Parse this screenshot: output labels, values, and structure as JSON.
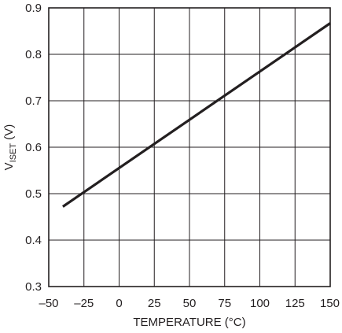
{
  "chart_data": {
    "type": "line",
    "title": "",
    "xlabel": "TEMPERATURE (°C)",
    "ylabel": {
      "base": "V",
      "subscript": "ISET",
      "unit": " (V)"
    },
    "xlim": [
      -50,
      150
    ],
    "ylim": [
      0.3,
      0.9
    ],
    "xticks": [
      "–50",
      "–25",
      "0",
      "25",
      "50",
      "75",
      "100",
      "125",
      "150"
    ],
    "yticks": [
      "0.3",
      "0.4",
      "0.5",
      "0.6",
      "0.7",
      "0.8",
      "0.9"
    ],
    "grid": true,
    "series": [
      {
        "x": [
          -40,
          150
        ],
        "y": [
          0.472,
          0.867
        ]
      }
    ]
  },
  "colors": {
    "grid": "#231f20",
    "line": "#231f20",
    "text": "#231f20"
  }
}
